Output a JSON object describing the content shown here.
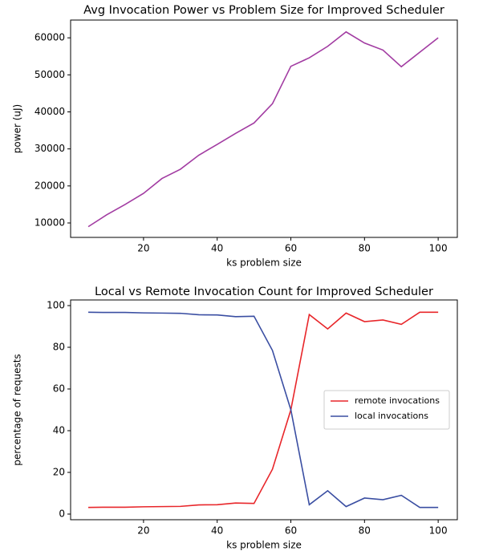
{
  "chart_data": [
    {
      "type": "line",
      "title": "Avg Invocation Power vs Problem Size for Improved Scheduler",
      "x_label": "ks problem size",
      "y_label": "power (uJ)",
      "x": [
        5,
        10,
        15,
        20,
        25,
        30,
        35,
        40,
        45,
        50,
        55,
        60,
        65,
        70,
        75,
        80,
        85,
        90,
        95,
        100
      ],
      "series": [
        {
          "name": null,
          "color": "#a23ca2",
          "values": [
            9000,
            12200,
            15000,
            18000,
            22000,
            24500,
            28300,
            31200,
            34200,
            37000,
            42200,
            52300,
            54600,
            57700,
            61600,
            58600,
            56700,
            52200,
            56100,
            60000
          ]
        }
      ],
      "xlim": [
        0.2,
        105.2
      ],
      "ylim": [
        6100,
        64800
      ],
      "xticks": [
        20,
        40,
        60,
        80,
        100
      ],
      "yticks": [
        10000,
        20000,
        30000,
        40000,
        50000,
        60000
      ]
    },
    {
      "type": "line",
      "title": "Local vs Remote Invocation Count for Improved Scheduler",
      "x_label": "ks problem size",
      "y_label": "percentage of requests",
      "x": [
        5,
        10,
        15,
        20,
        25,
        30,
        35,
        40,
        45,
        50,
        55,
        60,
        65,
        70,
        75,
        80,
        85,
        90,
        95,
        100
      ],
      "series": [
        {
          "name": "remote invocations",
          "color": "#e8262a",
          "values": [
            3.2,
            3.3,
            3.3,
            3.5,
            3.6,
            3.7,
            4.4,
            4.5,
            5.3,
            5.1,
            21.5,
            50,
            95.7,
            88.8,
            96.4,
            92.3,
            93.1,
            91.0,
            96.8,
            96.8
          ]
        },
        {
          "name": "local invocations",
          "color": "#3a4ea2",
          "values": [
            96.8,
            96.7,
            96.7,
            96.5,
            96.4,
            96.3,
            95.6,
            95.5,
            94.7,
            94.9,
            78.5,
            50,
            4.5,
            11.2,
            3.6,
            7.7,
            6.9,
            9.0,
            3.2,
            3.2
          ]
        }
      ],
      "xlim": [
        0.2,
        105.2
      ],
      "ylim": [
        -2.7,
        102.7
      ],
      "xticks": [
        20,
        40,
        60,
        80,
        100
      ],
      "yticks": [
        0,
        20,
        40,
        60,
        80,
        100
      ],
      "legend": "center right"
    }
  ]
}
